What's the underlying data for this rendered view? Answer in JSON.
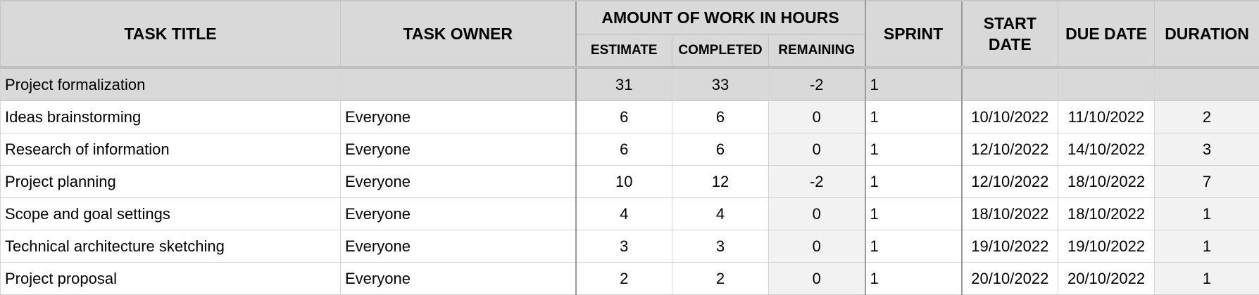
{
  "header": {
    "task_title": "TASK TITLE",
    "task_owner": "TASK OWNER",
    "amount_group": "AMOUNT OF WORK IN HOURS",
    "estimate": "ESTIMATE",
    "completed": "COMPLETED",
    "remaining": "REMAINING",
    "sprint": "SPRINT",
    "start_date": "START DATE",
    "due_date": "DUE DATE",
    "duration": "DURATION"
  },
  "rows": [
    {
      "title": "Project formalization",
      "owner": "",
      "estimate": "31",
      "completed": "33",
      "remaining": "-2",
      "sprint": "1",
      "start": "",
      "due": "",
      "duration": ""
    },
    {
      "title": "Ideas brainstorming",
      "owner": "Everyone",
      "estimate": "6",
      "completed": "6",
      "remaining": "0",
      "sprint": "1",
      "start": "10/10/2022",
      "due": "11/10/2022",
      "duration": "2"
    },
    {
      "title": "Research of information",
      "owner": "Everyone",
      "estimate": "6",
      "completed": "6",
      "remaining": "0",
      "sprint": "1",
      "start": "12/10/2022",
      "due": "14/10/2022",
      "duration": "3"
    },
    {
      "title": "Project planning",
      "owner": "Everyone",
      "estimate": "10",
      "completed": "12",
      "remaining": "-2",
      "sprint": "1",
      "start": "12/10/2022",
      "due": "18/10/2022",
      "duration": "7"
    },
    {
      "title": "Scope and goal settings",
      "owner": "Everyone",
      "estimate": "4",
      "completed": "4",
      "remaining": "0",
      "sprint": "1",
      "start": "18/10/2022",
      "due": "18/10/2022",
      "duration": "1"
    },
    {
      "title": "Technical architecture sketching",
      "owner": "Everyone",
      "estimate": "3",
      "completed": "3",
      "remaining": "0",
      "sprint": "1",
      "start": "19/10/2022",
      "due": "19/10/2022",
      "duration": "1"
    },
    {
      "title": "Project proposal",
      "owner": "Everyone",
      "estimate": "2",
      "completed": "2",
      "remaining": "0",
      "sprint": "1",
      "start": "20/10/2022",
      "due": "20/10/2022",
      "duration": "1"
    }
  ],
  "colors": {
    "header_bg": "#d9d9d9",
    "parent_row_bg": "#d9d9d9",
    "computed_cell_bg": "#f2f2f2",
    "grid_line": "#d4d4d4"
  }
}
